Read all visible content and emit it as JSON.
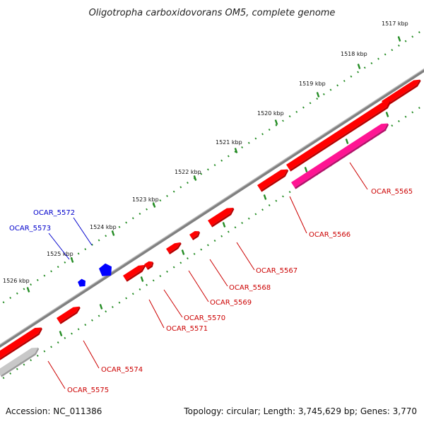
{
  "title": "Oligotropha carboxidovorans OM5, complete genome",
  "colors": {
    "forward_gene": "#ff0000",
    "forward_gene_shade": "#b40000",
    "rna_gene": "#ff1493",
    "reverse_gene": "#0000ff",
    "other_gene": "#c8c8c8",
    "backbone": "#808080",
    "tick": "#228b22",
    "label_forward": "#cc0000",
    "label_reverse": "#0000cc"
  },
  "ticks": [
    "1517 kbp",
    "1518 kbp",
    "1519 kbp",
    "1520 kbp",
    "1521 kbp",
    "1522 kbp",
    "1523 kbp",
    "1524 kbp",
    "1525 kbp",
    "1526 kbp"
  ],
  "genes": [
    {
      "label": "OCAR_5565",
      "strand": "forward",
      "color": "#ff1493"
    },
    {
      "label": "OCAR_5566",
      "strand": "forward",
      "color": "#ff0000"
    },
    {
      "label": "OCAR_5567",
      "strand": "forward",
      "color": "#ff0000"
    },
    {
      "label": "OCAR_5568",
      "strand": "forward",
      "color": "#ff0000"
    },
    {
      "label": "OCAR_5569",
      "strand": "forward",
      "color": "#ff0000"
    },
    {
      "label": "OCAR_5570",
      "strand": "forward",
      "color": "#ff0000"
    },
    {
      "label": "OCAR_5571",
      "strand": "forward",
      "color": "#ff0000"
    },
    {
      "label": "OCAR_5572",
      "strand": "reverse",
      "color": "#0000ff"
    },
    {
      "label": "OCAR_5573",
      "strand": "reverse",
      "color": "#0000ff"
    },
    {
      "label": "OCAR_5574",
      "strand": "forward",
      "color": "#ff0000"
    },
    {
      "label": "OCAR_5575",
      "strand": "forward",
      "color": "#ff0000"
    }
  ],
  "footer": {
    "accession": "Accession: NC_011386",
    "summary": "Topology: circular; Length: 3,745,629 bp; Genes: 3,770"
  }
}
